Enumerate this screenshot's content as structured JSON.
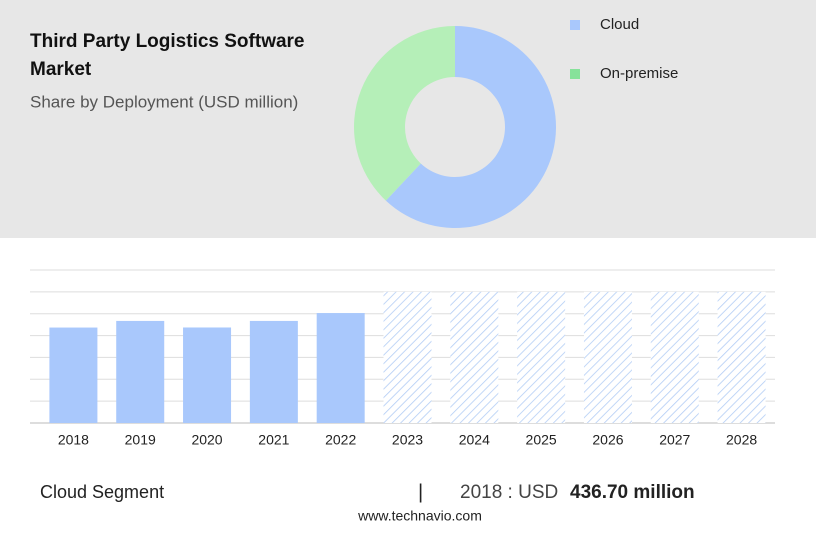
{
  "chart_data": [
    {
      "type": "pie",
      "title": "Third Party Logistics Software Market",
      "subtitle": "Share by Deployment (USD million)",
      "categories": [
        "Cloud",
        "On-premise"
      ],
      "values": [
        62,
        38
      ],
      "colors": [
        "#a9c8fc",
        "#b5efb8"
      ],
      "legend_colors": [
        "#a9c8fc",
        "#86e29a"
      ],
      "donut": true
    },
    {
      "type": "bar",
      "categories": [
        "2018",
        "2019",
        "2020",
        "2021",
        "2022",
        "2023",
        "2024",
        "2025",
        "2026",
        "2027",
        "2028"
      ],
      "values": [
        436.7,
        467,
        437,
        467,
        503,
        null,
        null,
        null,
        null,
        null,
        null
      ],
      "color": "#a9c8fc",
      "ylim": [
        0,
        700
      ],
      "grid": true
    }
  ],
  "footer": {
    "segment": "Cloud Segment",
    "separator": "|",
    "period": "2018 : USD",
    "amount": "436.70 million",
    "source": "www.technavio.com"
  }
}
